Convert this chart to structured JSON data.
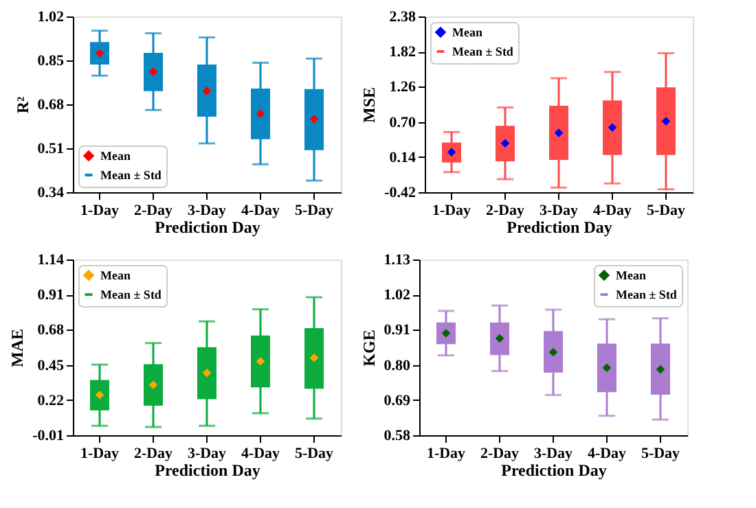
{
  "chart_data": [
    {
      "type": "box",
      "categories": [
        "1-Day",
        "2-Day",
        "3-Day",
        "4-Day",
        "5-Day"
      ],
      "xlabel": "Prediction Day",
      "ylabel": "R²",
      "ylim": [
        0.34,
        1.02
      ],
      "yticks": [
        0.34,
        0.51,
        0.68,
        0.85,
        1.02
      ],
      "grid": false,
      "legend": "bottom left",
      "marker": "diamond",
      "series": [
        {
          "name": "Mean",
          "type": "scatter",
          "color": "#ff0000",
          "values": [
            0.878,
            0.806,
            0.732,
            0.644,
            0.623
          ]
        },
        {
          "name": "Mean ± Std",
          "color": "#0a88c4",
          "boxes": [
            {
              "low": 0.791,
              "q1": 0.834,
              "q3": 0.921,
              "high": 0.965
            },
            {
              "low": 0.658,
              "q1": 0.731,
              "q3": 0.879,
              "high": 0.955
            },
            {
              "low": 0.529,
              "q1": 0.632,
              "q3": 0.834,
              "high": 0.939
            },
            {
              "low": 0.448,
              "q1": 0.545,
              "q3": 0.741,
              "high": 0.841
            },
            {
              "low": 0.385,
              "q1": 0.503,
              "q3": 0.739,
              "high": 0.857
            }
          ]
        }
      ]
    },
    {
      "type": "box",
      "categories": [
        "1-Day",
        "2-Day",
        "3-Day",
        "4-Day",
        "5-Day"
      ],
      "xlabel": "Prediction Day",
      "ylabel": "MSE",
      "ylim": [
        -0.42,
        2.38
      ],
      "yticks": [
        -0.42,
        0.14,
        {
          "value": 0.7,
          "label": "0.70"
        },
        1.26,
        1.82,
        2.38
      ],
      "grid": false,
      "legend": "top left",
      "marker": "diamond",
      "series": [
        {
          "name": "Mean",
          "type": "scatter",
          "color": "#0000ff",
          "values": [
            0.219,
            0.359,
            0.525,
            0.611,
            0.711
          ]
        },
        {
          "name": "Mean ± Std",
          "color": "#ff4a4a",
          "boxes": [
            {
              "low": -0.1,
              "q1": 0.053,
              "q3": 0.372,
              "high": 0.538
            },
            {
              "low": -0.213,
              "q1": 0.073,
              "q3": 0.638,
              "high": 0.93
            },
            {
              "low": -0.346,
              "q1": 0.093,
              "q3": 0.957,
              "high": 1.396
            },
            {
              "low": -0.28,
              "q1": 0.173,
              "q3": 1.044,
              "high": 1.496
            },
            {
              "low": -0.373,
              "q1": 0.173,
              "q3": 1.25,
              "high": 1.795
            }
          ]
        }
      ]
    },
    {
      "type": "box",
      "categories": [
        "1-Day",
        "2-Day",
        "3-Day",
        "4-Day",
        "5-Day"
      ],
      "xlabel": "Prediction Day",
      "ylabel": "MAE",
      "ylim": [
        -0.01,
        1.14
      ],
      "yticks": [
        -0.01,
        0.22,
        0.45,
        0.68,
        0.91,
        1.14
      ],
      "grid": false,
      "legend": "top left",
      "marker": "diamond",
      "series": [
        {
          "name": "Mean",
          "type": "scatter",
          "color": "#ffa500",
          "values": [
            0.254,
            0.319,
            0.398,
            0.474,
            0.496
          ]
        },
        {
          "name": "Mean ± Std",
          "color": "#0cab3e",
          "boxes": [
            {
              "low": 0.052,
              "q1": 0.153,
              "q3": 0.352,
              "high": 0.452
            },
            {
              "low": 0.044,
              "q1": 0.183,
              "q3": 0.455,
              "high": 0.593
            },
            {
              "low": 0.052,
              "q1": 0.226,
              "q3": 0.566,
              "high": 0.735
            },
            {
              "low": 0.134,
              "q1": 0.303,
              "q3": 0.642,
              "high": 0.814
            },
            {
              "low": 0.099,
              "q1": 0.294,
              "q3": 0.691,
              "high": 0.893
            }
          ]
        }
      ]
    },
    {
      "type": "box",
      "categories": [
        "1-Day",
        "2-Day",
        "3-Day",
        "4-Day",
        "5-Day"
      ],
      "xlabel": "Prediction Day",
      "ylabel": "KGE",
      "ylim": [
        0.58,
        1.13
      ],
      "yticks": [
        0.58,
        0.69,
        {
          "value": 0.8,
          "label": "0.80"
        },
        0.91,
        1.02,
        1.13
      ],
      "grid": false,
      "legend": "top right",
      "marker": "diamond",
      "series": [
        {
          "name": "Mean",
          "type": "scatter",
          "color": "#006400",
          "values": [
            0.899,
            0.883,
            0.84,
            0.791,
            0.786
          ]
        },
        {
          "name": "Mean ± Std",
          "color": "#ab7ccf",
          "boxes": [
            {
              "low": 0.83,
              "q1": 0.865,
              "q3": 0.933,
              "high": 0.969
            },
            {
              "low": 0.781,
              "q1": 0.831,
              "q3": 0.933,
              "high": 0.986
            },
            {
              "low": 0.706,
              "q1": 0.776,
              "q3": 0.906,
              "high": 0.973
            },
            {
              "low": 0.641,
              "q1": 0.715,
              "q3": 0.867,
              "high": 0.943
            },
            {
              "low": 0.629,
              "q1": 0.707,
              "q3": 0.867,
              "high": 0.946
            }
          ]
        }
      ]
    }
  ]
}
